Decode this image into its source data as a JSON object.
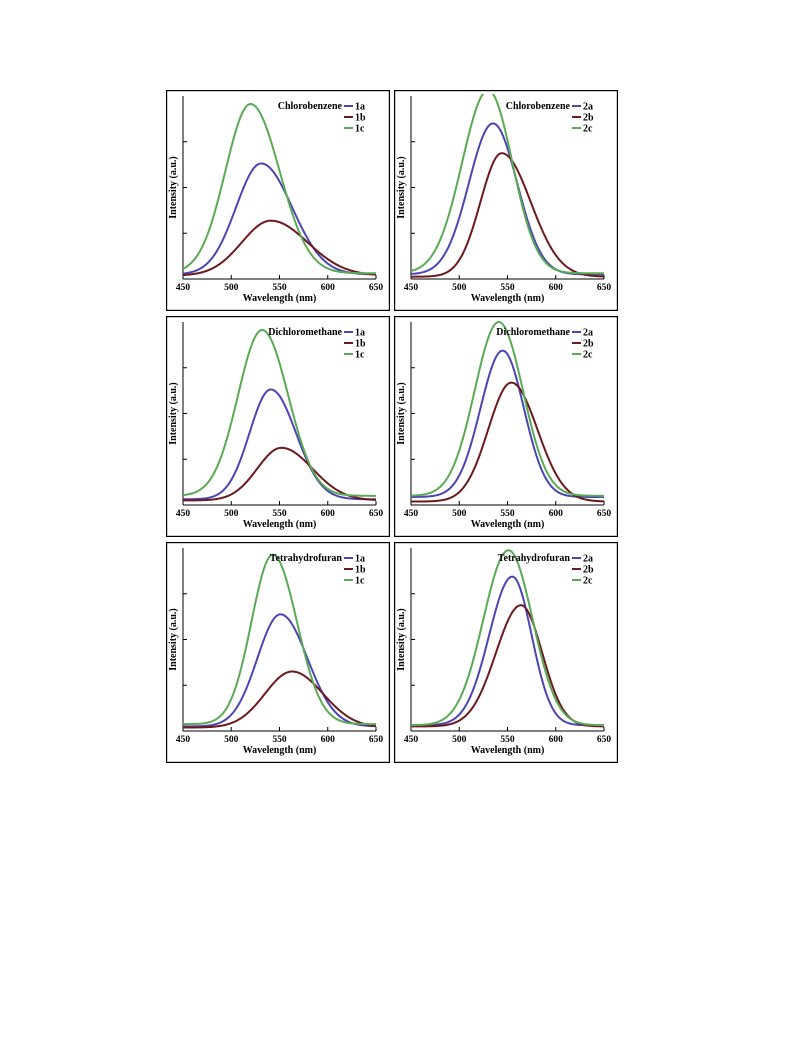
{
  "colors": {
    "a": "#4b45b5",
    "b": "#6b1a1f",
    "c": "#5aaa55"
  },
  "chart_data": [
    {
      "type": "line",
      "title": "Chlorobenzene",
      "xlabel": "Wavelength (nm)",
      "ylabel": "Intensity (a.u.)",
      "xlim": [
        450,
        650
      ],
      "ylim": [
        0,
        1.6
      ],
      "xticks": [
        450,
        500,
        550,
        600,
        650
      ],
      "legend": "top-right",
      "grid": false,
      "series": [
        {
          "name": "1a",
          "key": "a",
          "peak": 531,
          "amp": 0.97,
          "sl": 26,
          "sr": 32,
          "base": 0.04
        },
        {
          "name": "1b",
          "key": "b",
          "peak": 541,
          "amp": 0.48,
          "sl": 30,
          "sr": 38,
          "base": 0.03
        },
        {
          "name": "1c",
          "key": "c",
          "peak": 520,
          "amp": 1.48,
          "sl": 26,
          "sr": 30,
          "base": 0.05
        }
      ]
    },
    {
      "type": "line",
      "title": "Chlorobenzene",
      "xlabel": "Wavelength (nm)",
      "ylabel": "Intensity (a.u.)",
      "xlim": [
        450,
        650
      ],
      "ylim": [
        0,
        1.6
      ],
      "xticks": [
        450,
        500,
        550,
        600,
        650
      ],
      "legend": "top-right",
      "grid": false,
      "series": [
        {
          "name": "2a",
          "key": "a",
          "peak": 535,
          "amp": 1.32,
          "sl": 25,
          "sr": 25,
          "base": 0.04
        },
        {
          "name": "2b",
          "key": "b",
          "peak": 544,
          "amp": 1.08,
          "sl": 22,
          "sr": 30,
          "base": 0.02
        },
        {
          "name": "2c",
          "key": "c",
          "peak": 530,
          "amp": 1.6,
          "sl": 27,
          "sr": 25,
          "base": 0.05
        }
      ]
    },
    {
      "type": "line",
      "title": "Dichloromethane",
      "xlabel": "Wavelength (nm)",
      "ylabel": "Intensity (a.u.)",
      "xlim": [
        450,
        650
      ],
      "ylim": [
        0,
        1.6
      ],
      "xticks": [
        450,
        500,
        550,
        600,
        650
      ],
      "legend": "top-right",
      "grid": false,
      "series": [
        {
          "name": "1a",
          "key": "a",
          "peak": 541,
          "amp": 0.96,
          "sl": 22,
          "sr": 26,
          "base": 0.05
        },
        {
          "name": "1b",
          "key": "b",
          "peak": 552,
          "amp": 0.46,
          "sl": 25,
          "sr": 32,
          "base": 0.04
        },
        {
          "name": "1c",
          "key": "c",
          "peak": 532,
          "amp": 1.45,
          "sl": 25,
          "sr": 27,
          "base": 0.08
        }
      ]
    },
    {
      "type": "line",
      "title": "Dichloromethane",
      "xlabel": "Wavelength (nm)",
      "ylabel": "Intensity (a.u.)",
      "xlim": [
        450,
        650
      ],
      "ylim": [
        0,
        1.6
      ],
      "xticks": [
        450,
        500,
        550,
        600,
        650
      ],
      "legend": "top-right",
      "grid": false,
      "series": [
        {
          "name": "2a",
          "key": "a",
          "peak": 545,
          "amp": 1.28,
          "sl": 23,
          "sr": 22,
          "base": 0.07
        },
        {
          "name": "2b",
          "key": "b",
          "peak": 554,
          "amp": 1.04,
          "sl": 24,
          "sr": 27,
          "base": 0.03
        },
        {
          "name": "2c",
          "key": "c",
          "peak": 541,
          "amp": 1.52,
          "sl": 25,
          "sr": 25,
          "base": 0.08
        }
      ]
    },
    {
      "type": "line",
      "title": "Tetrahydrofuran",
      "xlabel": "Wavelength (nm)",
      "ylabel": "Intensity (a.u.)",
      "xlim": [
        450,
        650
      ],
      "ylim": [
        0,
        1.6
      ],
      "xticks": [
        450,
        500,
        550,
        600,
        650
      ],
      "legend": "top-right",
      "grid": false,
      "series": [
        {
          "name": "1a",
          "key": "a",
          "peak": 551,
          "amp": 0.98,
          "sl": 24,
          "sr": 28,
          "base": 0.04
        },
        {
          "name": "1b",
          "key": "b",
          "peak": 563,
          "amp": 0.49,
          "sl": 28,
          "sr": 32,
          "base": 0.03
        },
        {
          "name": "1c",
          "key": "c",
          "peak": 543,
          "amp": 1.48,
          "sl": 22,
          "sr": 25,
          "base": 0.06
        }
      ]
    },
    {
      "type": "line",
      "title": "Tetrahydrofuran",
      "xlabel": "Wavelength (nm)",
      "ylabel": "Intensity (a.u.)",
      "xlim": [
        450,
        650
      ],
      "ylim": [
        0,
        1.6
      ],
      "xticks": [
        450,
        500,
        550,
        600,
        650
      ],
      "legend": "top-right",
      "grid": false,
      "series": [
        {
          "name": "2a",
          "key": "a",
          "peak": 555,
          "amp": 1.3,
          "sl": 24,
          "sr": 20,
          "base": 0.05
        },
        {
          "name": "2b",
          "key": "b",
          "peak": 564,
          "amp": 1.06,
          "sl": 26,
          "sr": 22,
          "base": 0.04
        },
        {
          "name": "2c",
          "key": "c",
          "peak": 551,
          "amp": 1.53,
          "sl": 26,
          "sr": 25,
          "base": 0.05
        }
      ]
    }
  ]
}
